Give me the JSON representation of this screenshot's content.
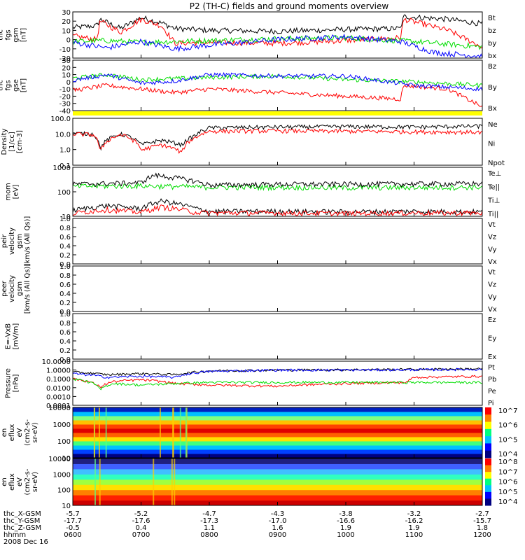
{
  "title": "P2 (TH-C) fields and ground moments overview",
  "date": "2008 Dec 16",
  "time_axis": {
    "ticks": [
      "0600",
      "0700",
      "0800",
      "0900",
      "1000",
      "1100",
      "1200"
    ],
    "rows": [
      {
        "label": "thc_X-GSM",
        "values": [
          "-5.7",
          "-5.2",
          "-4.7",
          "-4.3",
          "-3.8",
          "-3.2",
          "-2.7"
        ]
      },
      {
        "label": "thc_Y-GSM",
        "values": [
          "-17.7",
          "-17.6",
          "-17.3",
          "-17.0",
          "-16.6",
          "-16.2",
          "-15.7"
        ]
      },
      {
        "label": "thc_Z-GSM",
        "values": [
          "-0.5",
          "0.4",
          "1.1",
          "1.6",
          "1.9",
          "1.9",
          "1.8"
        ]
      },
      {
        "label": "hhmm",
        "values": [
          "0600",
          "0700",
          "0800",
          "0900",
          "1000",
          "1100",
          "1200"
        ]
      }
    ]
  },
  "colors": {
    "black": "#000000",
    "red": "#ff0000",
    "green": "#00dd00",
    "blue": "#0000ff",
    "yellow": "#ffff00"
  },
  "chart_data": [
    {
      "id": "fgs-gsm",
      "type": "line",
      "ylabel": [
        "thc",
        "fgs",
        "gsm",
        "[nT]"
      ],
      "yticks": [
        "30",
        "20",
        "10",
        "0",
        "-10",
        "-20"
      ],
      "ylim": [
        -20,
        30
      ],
      "legend": [
        {
          "name": "Bt",
          "color": "#000000"
        },
        {
          "name": "bz",
          "color": "#ff0000"
        },
        {
          "name": "by",
          "color": "#00dd00"
        },
        {
          "name": "bx",
          "color": "#0000ff"
        }
      ],
      "series": [
        {
          "name": "Bt",
          "x": [
            6.0,
            6.35,
            6.4,
            6.7,
            7.0,
            7.3,
            7.5,
            8.0,
            9.0,
            10.0,
            10.8,
            10.85,
            11.5,
            12.0
          ],
          "y": [
            13,
            15,
            22,
            12,
            24,
            18,
            12,
            10,
            9,
            11,
            12,
            25,
            22,
            17
          ]
        },
        {
          "name": "bz",
          "x": [
            6.0,
            6.35,
            6.4,
            6.7,
            7.0,
            7.3,
            7.5,
            8.0,
            9.0,
            10.0,
            10.8,
            10.85,
            11.5,
            12.0
          ],
          "y": [
            4,
            0,
            20,
            8,
            22,
            15,
            -4,
            -3,
            -4,
            -1,
            2,
            22,
            10,
            -8
          ]
        },
        {
          "name": "by",
          "x": [
            6.0,
            6.5,
            7.0,
            8.0,
            9.0,
            10.0,
            11.0,
            12.0
          ],
          "y": [
            -2,
            -1,
            -3,
            -1,
            1,
            2,
            -2,
            -8
          ]
        },
        {
          "name": "bx",
          "x": [
            6.0,
            6.5,
            7.0,
            7.5,
            8.0,
            9.0,
            10.0,
            10.8,
            11.3,
            12.0
          ],
          "y": [
            -3,
            -9,
            -2,
            -10,
            -6,
            0,
            3,
            -2,
            -14,
            -18
          ]
        }
      ]
    },
    {
      "id": "fgs-gse",
      "type": "line",
      "ylabel": [
        "thc",
        "fgs",
        "gse",
        "[nT]"
      ],
      "yticks": [
        "30",
        "20",
        "10",
        "0",
        "-10",
        "-20",
        "-30",
        "-40"
      ],
      "ylim": [
        -40,
        30
      ],
      "legend": [
        {
          "name": "Bz",
          "color": "#ff0000"
        },
        {
          "name": "By",
          "color": "#00dd00"
        },
        {
          "name": "Bx",
          "color": "#0000ff"
        }
      ],
      "series": [
        {
          "name": "Bz",
          "x": [
            6.0,
            6.5,
            7.0,
            7.5,
            8.0,
            9.0,
            10.0,
            10.8,
            10.85,
            11.5,
            12.0
          ],
          "y": [
            -12,
            -5,
            -10,
            -15,
            -10,
            -15,
            -20,
            -24,
            -5,
            -10,
            -35
          ]
        },
        {
          "name": "By",
          "x": [
            6.0,
            6.5,
            7.0,
            8.0,
            9.0,
            10.0,
            11.0,
            12.0
          ],
          "y": [
            5,
            10,
            3,
            6,
            8,
            3,
            0,
            -5
          ]
        },
        {
          "name": "Bx",
          "x": [
            6.0,
            6.5,
            7.0,
            7.5,
            8.0,
            9.0,
            10.0,
            11.0,
            12.0
          ],
          "y": [
            2,
            10,
            -2,
            1,
            10,
            8,
            8,
            -5,
            -10
          ]
        }
      ]
    },
    {
      "id": "density",
      "type": "line",
      "log": true,
      "ylabel": [
        "Density",
        "[1/cc]",
        "[cm-3]"
      ],
      "yticks": [
        "100.0",
        "10.0",
        "1.0",
        "0.1"
      ],
      "ylim": [
        0.1,
        100
      ],
      "legend": [
        {
          "name": "Ne",
          "color": "#ff0000"
        },
        {
          "name": "Ni",
          "color": "#000000"
        },
        {
          "name": "Npot",
          "color": "#0000ff"
        }
      ],
      "series": [
        {
          "name": "Ni",
          "x": [
            6.0,
            6.3,
            6.4,
            6.7,
            7.0,
            7.3,
            7.6,
            7.8,
            8.0,
            9.0,
            10.0,
            11.0,
            12.0
          ],
          "y": [
            11,
            10,
            1,
            10,
            2,
            4,
            2,
            8,
            25,
            28,
            30,
            28,
            32
          ]
        },
        {
          "name": "Ne",
          "x": [
            6.0,
            6.3,
            6.4,
            6.7,
            7.0,
            7.3,
            7.6,
            7.8,
            8.0,
            9.0,
            10.0,
            11.0,
            12.0
          ],
          "y": [
            10,
            9,
            0.5,
            9,
            0.9,
            2,
            0.6,
            6,
            15,
            16,
            15,
            14,
            13
          ]
        }
      ]
    },
    {
      "id": "moments-temp",
      "type": "line",
      "log": true,
      "ylabel": [
        "mom",
        "[eV]"
      ],
      "yticks": [
        "1000",
        "100",
        "10"
      ],
      "ylim": [
        10,
        3000
      ],
      "legend": [
        {
          "name": "Te⊥",
          "color": "#ff0000"
        },
        {
          "name": "Te||",
          "color": "#000000"
        },
        {
          "name": "Ti⊥",
          "color": "#000000"
        },
        {
          "name": "Ti||",
          "color": "#00dd00"
        }
      ],
      "series": [
        {
          "name": "Ti||",
          "x": [
            6.0,
            7.0,
            8.0,
            9.0,
            10.0,
            11.0,
            12.0
          ],
          "y": [
            330,
            350,
            300,
            300,
            280,
            290,
            300
          ]
        },
        {
          "name": "Ti⊥",
          "x": [
            6.0,
            7.0,
            7.2,
            8.0,
            9.0,
            10.0,
            11.0,
            12.0
          ],
          "y": [
            420,
            500,
            1200,
            380,
            420,
            430,
            440,
            450
          ]
        },
        {
          "name": "Te||",
          "x": [
            6.0,
            6.5,
            7.0,
            7.3,
            7.8,
            8.0,
            9.0,
            10.0,
            11.0,
            12.0
          ],
          "y": [
            20,
            35,
            25,
            60,
            25,
            18,
            18,
            17,
            18,
            17
          ]
        },
        {
          "name": "Te⊥",
          "x": [
            6.0,
            6.5,
            7.0,
            7.3,
            7.8,
            8.0,
            9.0,
            10.0,
            11.0,
            12.0
          ],
          "y": [
            14,
            22,
            16,
            30,
            16,
            15,
            15,
            14,
            15,
            15
          ]
        }
      ]
    },
    {
      "id": "peir-velocity",
      "type": "line",
      "ylabel": [
        "thc",
        "peir",
        "velocity",
        "gsm",
        "[km/s (All Qs)]"
      ],
      "yticks": [
        "1.0",
        "0.8",
        "0.6",
        "0.4",
        "0.2",
        "0.0"
      ],
      "ylim": [
        0,
        1
      ],
      "legend": [
        {
          "name": "Vt",
          "color": "#000000"
        },
        {
          "name": "Vz",
          "color": "#ff0000"
        },
        {
          "name": "Vy",
          "color": "#00dd00"
        },
        {
          "name": "Vx",
          "color": "#0000ff"
        }
      ],
      "series": []
    },
    {
      "id": "peer-velocity",
      "type": "line",
      "ylabel": [
        "thc",
        "peer",
        "velocity",
        "gsm",
        "[km/s (All Qs)]"
      ],
      "yticks": [
        "1.0",
        "0.8",
        "0.6",
        "0.4",
        "0.2",
        "0.0"
      ],
      "ylim": [
        0,
        1
      ],
      "legend": [
        {
          "name": "Vt",
          "color": "#000000"
        },
        {
          "name": "Vz",
          "color": "#ff0000"
        },
        {
          "name": "Vy",
          "color": "#00dd00"
        },
        {
          "name": "Vx",
          "color": "#0000ff"
        }
      ],
      "series": []
    },
    {
      "id": "efield",
      "type": "line",
      "ylabel": [
        "E=-VxB",
        "[mV/m]"
      ],
      "yticks": [
        "1.0",
        "0.8",
        "0.6",
        "0.4",
        "0.2",
        "0.0"
      ],
      "ylim": [
        0,
        1
      ],
      "legend": [
        {
          "name": "Ez",
          "color": "#ff0000"
        },
        {
          "name": "Ey",
          "color": "#00dd00"
        },
        {
          "name": "Ex",
          "color": "#0000ff"
        }
      ],
      "series": []
    },
    {
      "id": "pressure",
      "type": "line",
      "log": true,
      "ylabel": [
        "Pressure",
        "[nPa]"
      ],
      "yticks": [
        "10.0000",
        "1.0000",
        "0.1000",
        "0.0100",
        "0.0010",
        "0.0001"
      ],
      "ylim": [
        0.0001,
        10
      ],
      "legend": [
        {
          "name": "Pt",
          "color": "#000000"
        },
        {
          "name": "Pb",
          "color": "#ff0000"
        },
        {
          "name": "Pe",
          "color": "#00dd00"
        },
        {
          "name": "Pi",
          "color": "#0000ff"
        }
      ],
      "series": [
        {
          "name": "Pt",
          "x": [
            6.0,
            6.5,
            7.0,
            7.5,
            8.0,
            9.0,
            10.0,
            11.0,
            12.0
          ],
          "y": [
            0.6,
            0.3,
            0.4,
            0.3,
            0.8,
            1.0,
            1.1,
            1.2,
            1.4
          ]
        },
        {
          "name": "Pi",
          "x": [
            6.0,
            6.5,
            7.0,
            7.5,
            8.0,
            9.0,
            10.0,
            11.0,
            12.0
          ],
          "y": [
            0.4,
            0.15,
            0.2,
            0.15,
            0.7,
            1.0,
            1.0,
            1.1,
            1.2
          ]
        },
        {
          "name": "Pb",
          "x": [
            6.0,
            6.4,
            6.6,
            7.0,
            7.5,
            8.0,
            9.0,
            10.0,
            10.9,
            11.0,
            12.0
          ],
          "y": [
            0.1,
            0.01,
            0.05,
            0.08,
            0.03,
            0.02,
            0.015,
            0.03,
            0.04,
            0.15,
            0.2
          ]
        },
        {
          "name": "Pe",
          "x": [
            6.0,
            6.4,
            6.6,
            7.0,
            8.0,
            9.0,
            10.0,
            11.0,
            12.0
          ],
          "y": [
            0.1,
            0.005,
            0.03,
            0.02,
            0.04,
            0.04,
            0.04,
            0.04,
            0.04
          ]
        }
      ]
    },
    {
      "id": "peir-eflux",
      "type": "heatmap",
      "ylabel": [
        "thc",
        "peir",
        "en",
        "eflux",
        "eV",
        "(cm2-s-",
        "sr-eV)"
      ],
      "yticks": [
        "10000",
        "1000",
        "100",
        "10"
      ],
      "ylim": [
        10,
        10000
      ],
      "colorbar": [
        "10^7",
        "10^6",
        "10^5",
        "10^4"
      ]
    },
    {
      "id": "peer-eflux",
      "type": "heatmap",
      "ylabel": [
        "thc",
        "peer",
        "en",
        "eflux",
        "eV",
        "(cm2-s-",
        "sr-eV)"
      ],
      "yticks": [
        "10000",
        "1000",
        "100",
        "10"
      ],
      "ylim": [
        10,
        10000
      ],
      "colorbar": [
        "10^8",
        "10^7",
        "10^6",
        "10^5",
        "10^4"
      ]
    }
  ]
}
